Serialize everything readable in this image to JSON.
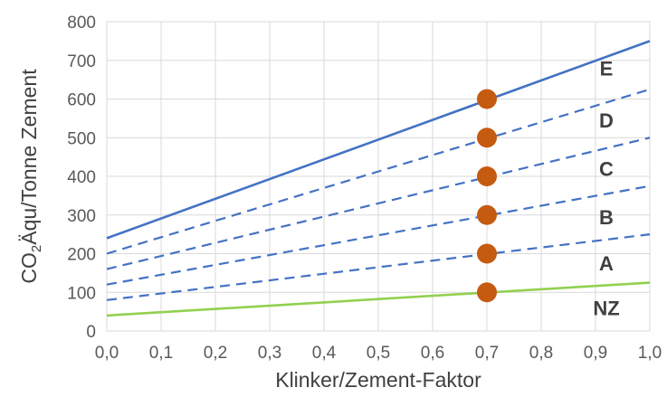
{
  "chart_data": {
    "type": "line",
    "xlabel": "Klinker/Zement-Faktor",
    "ylabel_parts": [
      "CO",
      "2",
      "Äqu/Tonne Zement"
    ],
    "x_ticks": [
      "0,0",
      "0,1",
      "0,2",
      "0,3",
      "0,4",
      "0,5",
      "0,6",
      "0,7",
      "0,8",
      "0,9",
      "1,0"
    ],
    "y_ticks": [
      "0",
      "100",
      "200",
      "300",
      "400",
      "500",
      "600",
      "700",
      "800"
    ],
    "xlim": [
      0,
      1
    ],
    "ylim": [
      0,
      800
    ],
    "grid": true,
    "series": [
      {
        "name": "E",
        "x": [
          0,
          1
        ],
        "y": [
          240,
          750
        ],
        "color": "#4472C4",
        "style": "solid"
      },
      {
        "name": "D",
        "x": [
          0,
          1
        ],
        "y": [
          200,
          625
        ],
        "color": "#4472C4",
        "style": "dashed"
      },
      {
        "name": "C",
        "x": [
          0,
          1
        ],
        "y": [
          160,
          500
        ],
        "color": "#4472C4",
        "style": "dashed"
      },
      {
        "name": "B",
        "x": [
          0,
          1
        ],
        "y": [
          120,
          375
        ],
        "color": "#4472C4",
        "style": "dashed"
      },
      {
        "name": "A",
        "x": [
          0,
          1
        ],
        "y": [
          80,
          250
        ],
        "color": "#4472C4",
        "style": "dashed"
      },
      {
        "name": "NZ",
        "x": [
          0,
          1
        ],
        "y": [
          40,
          125
        ],
        "color": "#92D050",
        "style": "solid"
      }
    ],
    "band_labels": [
      {
        "text": "E",
        "y": 680
      },
      {
        "text": "D",
        "y": 545
      },
      {
        "text": "C",
        "y": 420
      },
      {
        "text": "B",
        "y": 295
      },
      {
        "text": "A",
        "y": 175
      },
      {
        "text": "NZ",
        "y": 60
      }
    ],
    "markers": {
      "color": "#C55A11",
      "x": [
        0.7,
        0.7,
        0.7,
        0.7,
        0.7,
        0.7
      ],
      "y": [
        100,
        200,
        300,
        400,
        500,
        600
      ]
    }
  }
}
